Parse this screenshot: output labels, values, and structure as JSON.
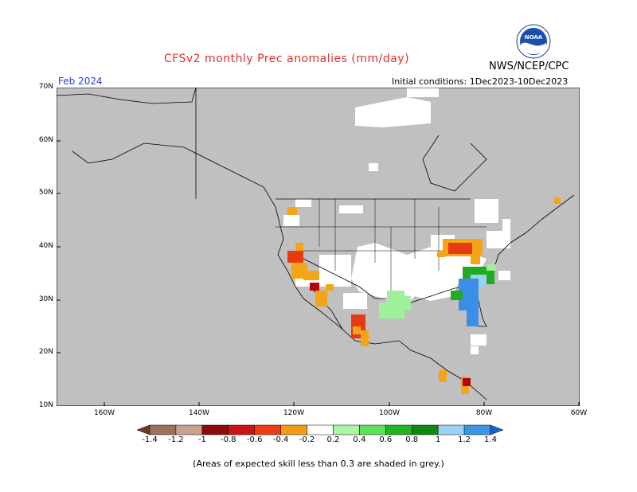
{
  "header": {
    "title": "CFSv2 monthly Prec anomalies (mm/day)",
    "month": "Feb 2024",
    "agency": "NWS/NCEP/CPC",
    "init": "Initial conditions: 1Dec2023-10Dec2023",
    "logo_text": "NOAA"
  },
  "map": {
    "lat_labels": [
      "70N",
      "60N",
      "50N",
      "40N",
      "30N",
      "20N",
      "10N"
    ],
    "lon_labels": [
      "160W",
      "140W",
      "120W",
      "100W",
      "80W",
      "60W"
    ],
    "lat_range": [
      10,
      70
    ],
    "lon_range": [
      -170,
      -60
    ],
    "colors": {
      "masked": "#c0c0c0",
      "neutral": "#ffffff",
      "dry_strong": "#b8000e",
      "dry": "#e83a12",
      "dry_light": "#f4a417",
      "wet_light": "#9ef09a",
      "wet": "#22aa22",
      "wet_blue": "#3a8ee8",
      "wet_blue_light": "#9cd0f4"
    }
  },
  "colorbar": {
    "labels": [
      "-1.4",
      "-1.2",
      "-1",
      "-0.8",
      "-0.6",
      "-0.4",
      "-0.2",
      "0.2",
      "0.4",
      "0.6",
      "0.8",
      "1",
      "1.2",
      "1.4"
    ],
    "colors": [
      "#6b3e2a",
      "#a0705c",
      "#c8a090",
      "#8c0a0a",
      "#c81414",
      "#f03c14",
      "#f49a14",
      "#ffffff",
      "#aaf4a4",
      "#5ee05a",
      "#22b422",
      "#118811",
      "#9cd0f4",
      "#3c96e8",
      "#1464d2"
    ]
  },
  "footer": {
    "note": "(Areas of expected skill less than 0.3 are shaded in grey.)"
  }
}
